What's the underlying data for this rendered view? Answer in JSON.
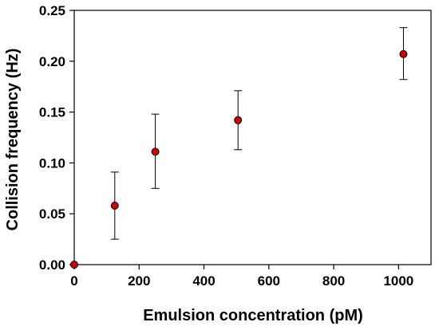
{
  "chart_data": {
    "type": "scatter",
    "title": "",
    "xlabel": "Emulsion concentration (pM)",
    "ylabel": "Collision frequency (Hz)",
    "xlim": [
      0,
      1100
    ],
    "ylim": [
      0,
      0.25
    ],
    "x_ticks": [
      0,
      200,
      400,
      600,
      800,
      1000
    ],
    "y_ticks": [
      0.0,
      0.05,
      0.1,
      0.15,
      0.2,
      0.25
    ],
    "x_tick_labels": [
      "0",
      "200",
      "400",
      "600",
      "800",
      "1000"
    ],
    "y_tick_labels": [
      "0.00",
      "0.05",
      "0.10",
      "0.15",
      "0.20",
      "0.25"
    ],
    "grid": false,
    "legend": "none",
    "series": [
      {
        "color": "#cc0000",
        "points": [
          {
            "x": 0,
            "y": 0.0,
            "err_low": 0.0,
            "err_high": 0.0
          },
          {
            "x": 125,
            "y": 0.058,
            "err_low": 0.025,
            "err_high": 0.091
          },
          {
            "x": 250,
            "y": 0.111,
            "err_low": 0.075,
            "err_high": 0.148
          },
          {
            "x": 505,
            "y": 0.142,
            "err_low": 0.113,
            "err_high": 0.171
          },
          {
            "x": 1015,
            "y": 0.207,
            "err_low": 0.182,
            "err_high": 0.233
          }
        ]
      }
    ]
  }
}
